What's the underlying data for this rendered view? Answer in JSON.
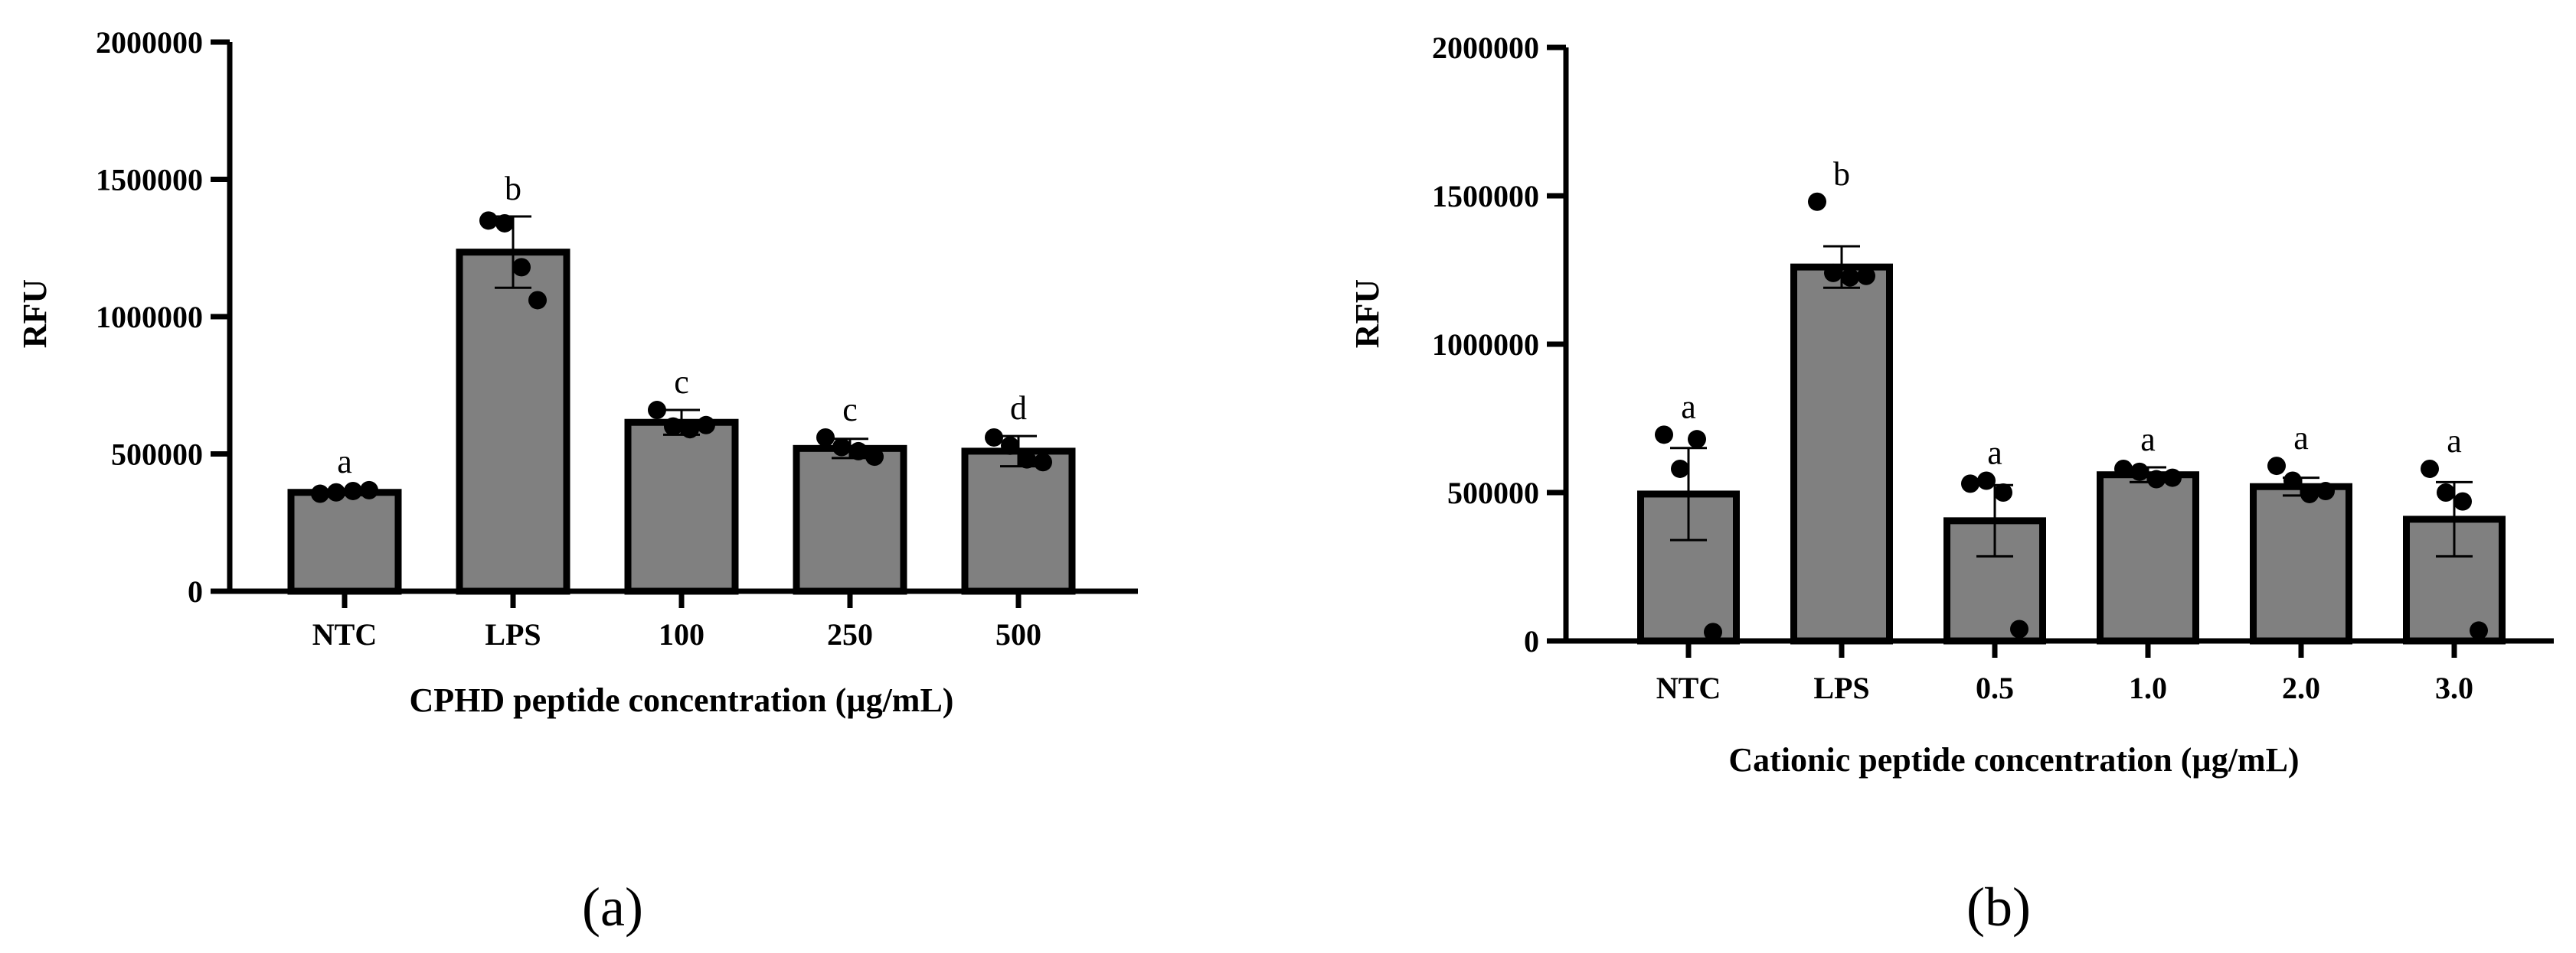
{
  "chart_data": [
    {
      "panel_label": "(a)",
      "type": "bar",
      "xlabel": "CPHD peptide concentration (µg/mL)",
      "ylabel": "RFU",
      "ylim": [
        0,
        2000000
      ],
      "yticks": [
        "0",
        "500000",
        "1000000",
        "1500000",
        "2000000"
      ],
      "grid": false,
      "categories": [
        "NTC",
        "LPS",
        "100",
        "250",
        "500"
      ],
      "values": [
        360000,
        1235000,
        615000,
        520000,
        510000
      ],
      "error": [
        10000,
        130000,
        45000,
        35000,
        55000
      ],
      "significance": [
        "a",
        "b",
        "c",
        "c",
        "d"
      ],
      "points": [
        [
          355000,
          360000,
          365000,
          368000
        ],
        [
          1350000,
          1340000,
          1180000,
          1060000
        ],
        [
          660000,
          600000,
          590000,
          605000
        ],
        [
          560000,
          525000,
          510000,
          490000
        ],
        [
          560000,
          530000,
          480000,
          470000
        ]
      ],
      "bar_color": "#808080"
    },
    {
      "panel_label": "(b)",
      "type": "bar",
      "xlabel": "Cationic peptide concentration (µg/mL)",
      "ylabel": "RFU",
      "ylim": [
        0,
        2000000
      ],
      "yticks": [
        "0",
        "500000",
        "1000000",
        "1500000",
        "2000000"
      ],
      "grid": false,
      "categories": [
        "NTC",
        "LPS",
        "0.5",
        "1.0",
        "2.0",
        "3.0"
      ],
      "values": [
        495000,
        1260000,
        405000,
        560000,
        520000,
        410000
      ],
      "error": [
        155000,
        70000,
        120000,
        25000,
        30000,
        125000
      ],
      "significance": [
        "a",
        "b",
        "a",
        "a",
        "a",
        "a"
      ],
      "points": [
        [
          695000,
          580000,
          680000,
          30000
        ],
        [
          1480000,
          1240000,
          1225000,
          1230000
        ],
        [
          530000,
          540000,
          500000,
          40000
        ],
        [
          580000,
          570000,
          545000,
          550000
        ],
        [
          590000,
          540000,
          495000,
          505000
        ],
        [
          580000,
          500000,
          470000,
          35000
        ]
      ],
      "bar_color": "#808080"
    }
  ]
}
